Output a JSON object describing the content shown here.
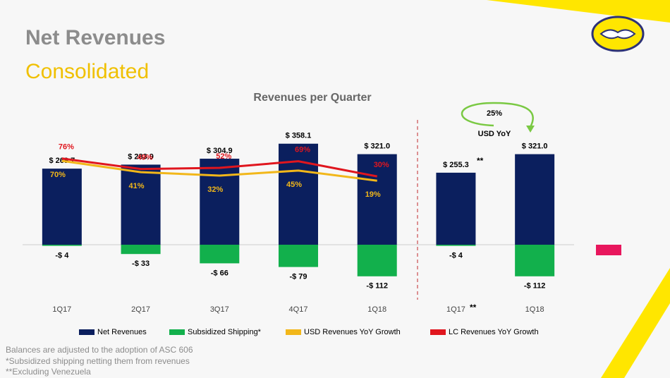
{
  "slide": {
    "title": "Net Revenues",
    "subtitle": "Consolidated",
    "footnotes": [
      "Balances are adjusted to the adoption of ASC 606",
      "*Subsidized shipping netting them from revenues",
      "**Excluding Venezuela"
    ]
  },
  "chart_data": {
    "type": "bar",
    "title": "Revenues per Quarter",
    "categories": [
      "1Q17",
      "2Q17",
      "3Q17",
      "4Q17",
      "1Q18",
      "1Q17",
      "1Q18"
    ],
    "ylim": [
      -130,
      380
    ],
    "y2lim": [
      -240,
      130
    ],
    "annotations": [
      "25%",
      "USD YoY",
      "**",
      "**"
    ],
    "series": [
      {
        "name": "Net Revenues",
        "color": "#0b1f5e",
        "values": [
          269.7,
          283.9,
          304.9,
          358.1,
          321.0,
          255.3,
          321.0
        ],
        "value_labels": [
          "$ 269.7",
          "$ 283.9",
          "$ 304.9",
          "$ 358.1",
          "$ 321.0",
          "$ 255.3",
          "$ 321.0"
        ]
      },
      {
        "name": "Subsidized Shipping*",
        "color": "#12b04c",
        "values": [
          -4,
          -33,
          -66,
          -79,
          -112,
          -4,
          -112
        ],
        "value_labels": [
          "-$ 4",
          "-$ 33",
          "-$ 66",
          "-$ 79",
          "-$ 112",
          "-$ 4",
          "-$ 112"
        ]
      },
      {
        "name": "USD Revenues YoY Growth",
        "color": "#f2b71a",
        "axis": "y2",
        "values": [
          70,
          41,
          32,
          45,
          19,
          null,
          null
        ],
        "value_labels": [
          "70%",
          "41%",
          "32%",
          "45%",
          "19%",
          null,
          null
        ]
      },
      {
        "name": "LC Revenues YoY Growth",
        "color": "#e0161e",
        "axis": "y2",
        "values": [
          76,
          49,
          52,
          69,
          30,
          null,
          null
        ],
        "value_labels": [
          "76%",
          "49%",
          "52%",
          "69%",
          "30%",
          null,
          null
        ]
      }
    ]
  }
}
